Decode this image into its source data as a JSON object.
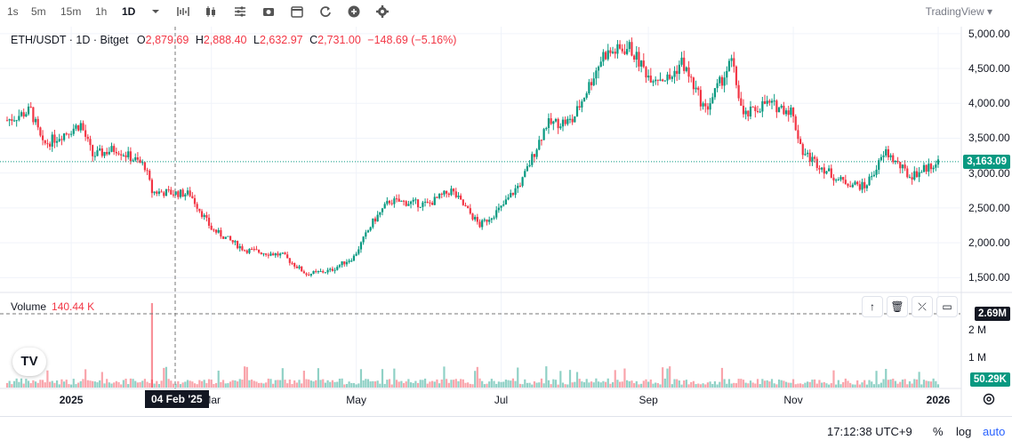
{
  "toolbar": {
    "intervals": [
      "1s",
      "5m",
      "15m",
      "1h",
      "1D"
    ],
    "active_interval": "1D",
    "brand": "TradingView"
  },
  "legend": {
    "symbol": "ETH/USDT · 1D · Bitget",
    "o_label": "O",
    "o": "2,879.69",
    "h_label": "H",
    "h": "2,888.40",
    "l_label": "L",
    "l": "2,632.97",
    "c_label": "C",
    "c": "2,731.00",
    "change": "−148.69 (−5.16%)"
  },
  "volume_legend": {
    "label": "Volume",
    "value": "140.44 K"
  },
  "price_scale": {
    "ticks": [
      "1,500.00",
      "2,000.00",
      "2,500.00",
      "3,000.00",
      "3,500.00",
      "4,000.00",
      "4,500.00",
      "5,000.00"
    ],
    "current_price": "3,163.09",
    "crosshair_volume": "2.69M",
    "current_volume": "50.29K",
    "volume_ticks": [
      "1 M",
      "2 M"
    ]
  },
  "time_scale": {
    "labels": [
      "2025",
      "Mar",
      "May",
      "Jul",
      "Sep",
      "Nov",
      "2026"
    ],
    "crosshair_date": "04 Feb '25"
  },
  "bottom_bar": {
    "clock": "17:12:38 UTC+9",
    "percent": "%",
    "log": "log",
    "auto": "auto"
  },
  "colors": {
    "up": "#089981",
    "down": "#f23645",
    "accent": "#2962ff"
  },
  "chart_data": {
    "type": "candlestick",
    "title": "ETH/USDT · 1D · Bitget",
    "x_range": [
      "2024-12-05",
      "2026-01-01"
    ],
    "ylim": [
      1300,
      5100
    ],
    "anchors": [
      [
        "2024-12-01",
        3700
      ],
      [
        "2024-12-15",
        3900
      ],
      [
        "2024-12-20",
        3400
      ],
      [
        "2025-01-05",
        3700
      ],
      [
        "2025-01-10",
        3250
      ],
      [
        "2025-01-20",
        3350
      ],
      [
        "2025-02-01",
        3100
      ],
      [
        "2025-02-04",
        2731
      ],
      [
        "2025-02-20",
        2700
      ],
      [
        "2025-03-01",
        2200
      ],
      [
        "2025-03-15",
        1900
      ],
      [
        "2025-03-31",
        1820
      ],
      [
        "2025-04-10",
        1550
      ],
      [
        "2025-04-20",
        1600
      ],
      [
        "2025-04-30",
        1800
      ],
      [
        "2025-05-08",
        2300
      ],
      [
        "2025-05-15",
        2600
      ],
      [
        "2025-05-31",
        2550
      ],
      [
        "2025-06-10",
        2750
      ],
      [
        "2025-06-22",
        2250
      ],
      [
        "2025-07-01",
        2500
      ],
      [
        "2025-07-10",
        2900
      ],
      [
        "2025-07-20",
        3700
      ],
      [
        "2025-07-31",
        3750
      ],
      [
        "2025-08-13",
        4700
      ],
      [
        "2025-08-24",
        4800
      ],
      [
        "2025-09-01",
        4400
      ],
      [
        "2025-09-10",
        4350
      ],
      [
        "2025-09-15",
        4600
      ],
      [
        "2025-09-25",
        3900
      ],
      [
        "2025-10-06",
        4600
      ],
      [
        "2025-10-11",
        3800
      ],
      [
        "2025-10-20",
        4000
      ],
      [
        "2025-10-31",
        3900
      ],
      [
        "2025-11-05",
        3300
      ],
      [
        "2025-11-20",
        2900
      ],
      [
        "2025-12-01",
        2800
      ],
      [
        "2025-12-10",
        3300
      ],
      [
        "2025-12-20",
        2950
      ],
      [
        "2026-01-01",
        3163
      ]
    ],
    "current_price": 3163.09
  }
}
